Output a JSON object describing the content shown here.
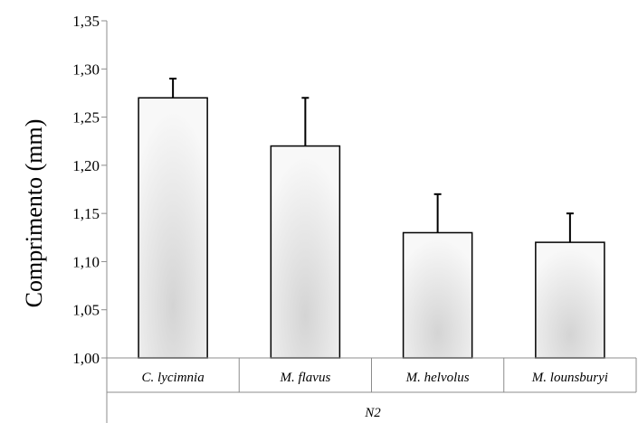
{
  "chart_data": {
    "type": "bar",
    "ylabel": "Comprimento (mm)",
    "group_label": "N2",
    "categories": [
      "C. lycimnia",
      "M. flavus",
      "M. helvolus",
      "M. lounsburyi"
    ],
    "values": [
      1.27,
      1.22,
      1.13,
      1.12
    ],
    "errors": [
      0.02,
      0.05,
      0.04,
      0.03
    ],
    "ylim": [
      1.0,
      1.35
    ],
    "yticks": [
      "1,00",
      "1,05",
      "1,10",
      "1,15",
      "1,20",
      "1,25",
      "1,30",
      "1,35"
    ],
    "ytick_values": [
      1.0,
      1.05,
      1.1,
      1.15,
      1.2,
      1.25,
      1.3,
      1.35
    ],
    "grid": false,
    "legend": "none",
    "bar_fill": "gradient-gray"
  }
}
